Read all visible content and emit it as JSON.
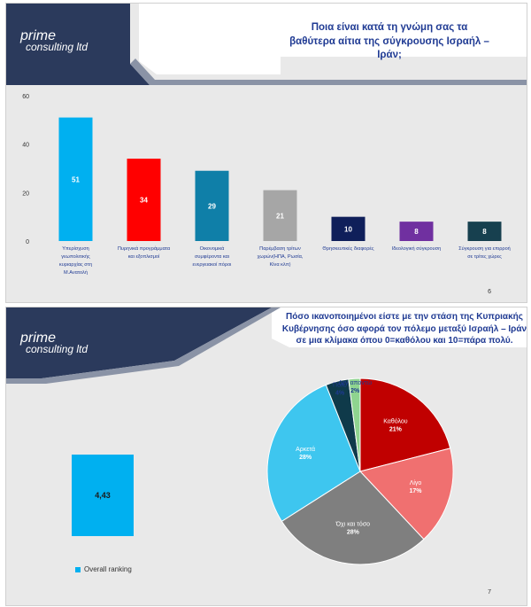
{
  "slide1": {
    "logo": {
      "line1": "prime",
      "line2": "consulting ltd"
    },
    "title": "Ποια είναι κατά τη γνώμη σας τα βαθύτερα αίτια της σύγκρουσης Ισραήλ – Ιράν;",
    "page_number": "6"
  },
  "slide2": {
    "logo": {
      "line1": "prime",
      "line2": "consulting ltd"
    },
    "title": "Πόσο ικανοποιημένοι είστε με την στάση της Κυπριακής Κυβέρνησης όσο αφορά τον πόλεμο μεταξύ Ισραήλ – Ιράν σε μια κλίμακα όπου 0=καθόλου και 10=πάρα πολύ.",
    "page_number": "7",
    "legend_label": "Overall ranking"
  },
  "chart_data": [
    {
      "type": "bar",
      "ylim": [
        0,
        60
      ],
      "yticks": [
        0,
        20,
        40,
        60
      ],
      "grid": false,
      "categories": [
        [
          "Υπερίσχυση",
          "γεωπολιτικής",
          "κυριαρχίας στη",
          "Μ.Ανατολή"
        ],
        [
          "Πυρηνικά προγράμματα",
          "και εξοπλισμοί"
        ],
        [
          "Οικονομικά",
          "συμφέροντα και",
          "ενεργειακοί πόροι"
        ],
        [
          "Παρέμβαση τρίτων",
          "χωρών(ΗΠΑ, Ρωσία,",
          "Κίνα κλπ)"
        ],
        [
          "Θρησκευτικές διαφορές"
        ],
        [
          "Ιδεολογική σύγκρουση"
        ],
        [
          "Σύγκρουση για επιρροή",
          "σε τρίτες χώρες"
        ]
      ],
      "values": [
        51,
        34,
        29,
        21,
        10,
        8,
        8
      ],
      "colors": [
        "#00b0f0",
        "#ff0000",
        "#0f7fa8",
        "#a6a6a6",
        "#0f1f5a",
        "#7030a0",
        "#17404f"
      ]
    },
    {
      "type": "bar",
      "series": [
        {
          "name": "Overall ranking",
          "values": [
            4.43
          ]
        }
      ],
      "value_labels": [
        "4,43"
      ],
      "color": "#00b0f0"
    },
    {
      "type": "pie",
      "labels": [
        "Καθόλου",
        "Λίγο",
        "Όχι και τόσο",
        "Αρκετά",
        "Πολύ",
        "Δεν απαντώ"
      ],
      "values": [
        21,
        17,
        28,
        28,
        4,
        2
      ],
      "value_labels": [
        "21%",
        "17%",
        "28%",
        "28%",
        "4%",
        "2%"
      ],
      "colors": [
        "#c00000",
        "#f07070",
        "#7f7f7f",
        "#3ec6ef",
        "#0f3a4a",
        "#8fd48f"
      ]
    }
  ]
}
